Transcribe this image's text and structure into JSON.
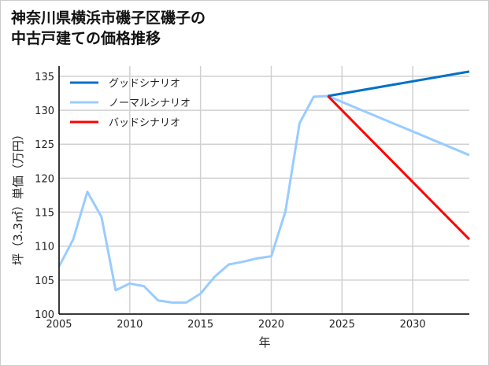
{
  "title_line1": "神奈川県横浜市磯子区磯子の",
  "title_line2": "中古戸建ての価格推移",
  "chart_data": {
    "type": "line",
    "title": "神奈川県横浜市磯子区磯子の中古戸建ての価格推移",
    "xlabel": "年",
    "ylabel": "坪（3.3㎡）単価（万円）",
    "xlim": [
      2005,
      2034
    ],
    "ylim": [
      100,
      136.5
    ],
    "xticks": [
      2005,
      2010,
      2015,
      2020,
      2025,
      2030
    ],
    "yticks": [
      100,
      105,
      110,
      115,
      120,
      125,
      130,
      135
    ],
    "grid": true,
    "legend_position": "top-left",
    "series": [
      {
        "name": "グッドシナリオ",
        "color": "#0070c8",
        "x": [
          2024,
          2034
        ],
        "y": [
          132.1,
          135.7
        ]
      },
      {
        "name": "ノーマルシナリオ",
        "color": "#99ccff",
        "x": [
          2005,
          2006,
          2007,
          2008,
          2009,
          2010,
          2011,
          2012,
          2013,
          2014,
          2015,
          2016,
          2017,
          2018,
          2019,
          2020,
          2021,
          2022,
          2023,
          2024,
          2034
        ],
        "y": [
          107,
          111,
          118,
          114.3,
          103.5,
          104.5,
          104.1,
          102,
          101.7,
          101.7,
          103,
          105.5,
          107.3,
          107.7,
          108.2,
          108.5,
          115.1,
          128.1,
          132,
          132.1,
          123.4
        ]
      },
      {
        "name": "バッドシナリオ",
        "color": "#ff0000",
        "x": [
          2024,
          2034
        ],
        "y": [
          132.1,
          111
        ]
      }
    ]
  }
}
